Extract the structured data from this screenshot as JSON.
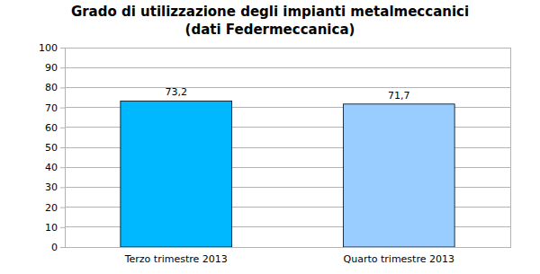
{
  "chart_data": {
    "type": "bar",
    "title": "Grado di utilizzazione degli impianti metalmeccanici",
    "subtitle": "(dati Federmeccanica)",
    "categories": [
      "Terzo trimestre 2013",
      "Quarto trimestre 2013"
    ],
    "values": [
      73.2,
      71.7
    ],
    "value_labels": [
      "73,2",
      "71,7"
    ],
    "colors": [
      "#00b8ff",
      "#99ccff"
    ],
    "ylim": [
      0,
      100
    ],
    "yticks": [
      0,
      10,
      20,
      30,
      40,
      50,
      60,
      70,
      80,
      90,
      100
    ],
    "grid": true,
    "data_labels": true
  }
}
